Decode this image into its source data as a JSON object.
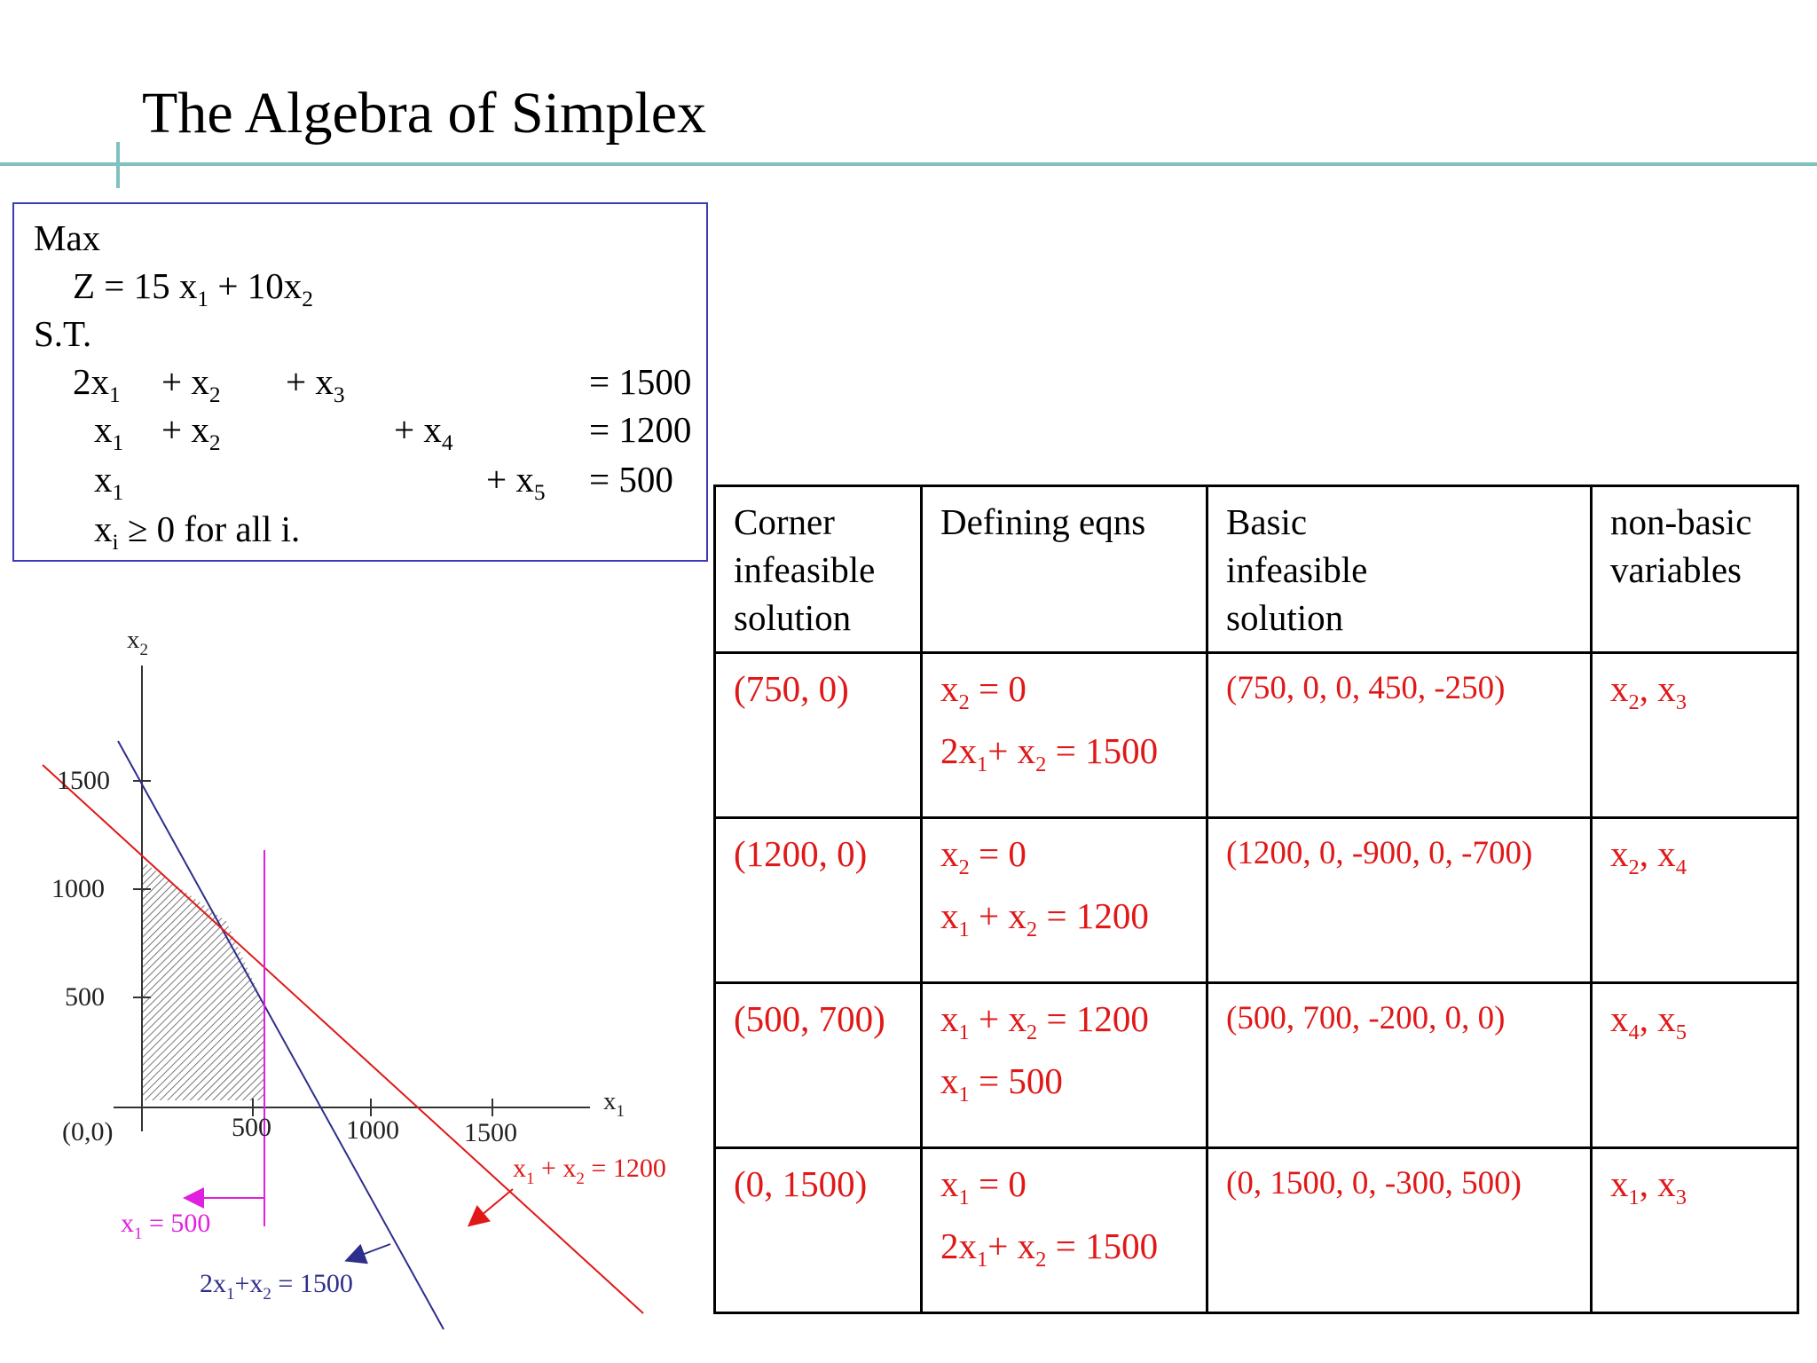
{
  "slide": {
    "title": "The Algebra of Simplex"
  },
  "lp": {
    "max_label": "Max",
    "objective": {
      "z": "Z = 15 x",
      "plus": " + 10x"
    },
    "st_label": "S.T.",
    "c1": {
      "a": "2x",
      "b": "+ x",
      "c": "+ x",
      "rhs": "= 1500"
    },
    "c2": {
      "a": "x",
      "b": "+ x",
      "d": "+ x",
      "rhs": "= 1200"
    },
    "c3": {
      "a": "x",
      "e": "+ x",
      "rhs": "= 500"
    },
    "nonneg": {
      "x": "x",
      "rest": " ≥ 0 for all i."
    },
    "subs": {
      "one": "1",
      "two": "2",
      "three": "3",
      "four": "4",
      "five": "5",
      "i": "i"
    }
  },
  "table": {
    "headers": [
      [
        "Corner",
        "infeasible",
        "solution"
      ],
      [
        "Defining eqns"
      ],
      [
        "Basic",
        "infeasible",
        "solution"
      ],
      [
        "non-basic",
        "variables"
      ]
    ],
    "rows": [
      {
        "corner": "(750, 0)",
        "bfs": "(750, 0, 0, 450, -250)"
      },
      {
        "corner": "(1200, 0)",
        "bfs": "(1200, 0, -900, 0, -700)"
      },
      {
        "corner": "(500, 700)",
        "bfs": "(500, 700, -200, 0, 0)"
      },
      {
        "corner": "(0, 1500)",
        "bfs": "(0, 1500, 0, -300, 500)"
      }
    ],
    "eq_text": {
      "x": "x",
      "two_x": "2x",
      "eq0": " = 0",
      "plus_x": "+ x",
      "plus_x_tight": "+ x",
      "eq1500": " = 1500",
      "eq1200": " = 1200",
      "eq500": " = 500",
      "comma": ", x"
    }
  },
  "graph": {
    "x_axis_label": "x",
    "x_axis_sub": "1",
    "y_axis_label": "x",
    "y_axis_sub": "2",
    "origin_label": "(0,0)",
    "x_ticks": [
      "500",
      "1000",
      "1500"
    ],
    "y_ticks": [
      "500",
      "1000",
      "1500"
    ],
    "line_labels": {
      "red": {
        "a": "x",
        "b": " + x",
        "c": "  = 1200"
      },
      "magenta": {
        "a": "x",
        "c": " =  500"
      },
      "blue": {
        "a": "2x",
        "b": "+x",
        "c": " =  1500"
      }
    },
    "colors": {
      "red": "#e01818",
      "blue": "#2e2e8c",
      "magenta": "#e020e0"
    }
  }
}
